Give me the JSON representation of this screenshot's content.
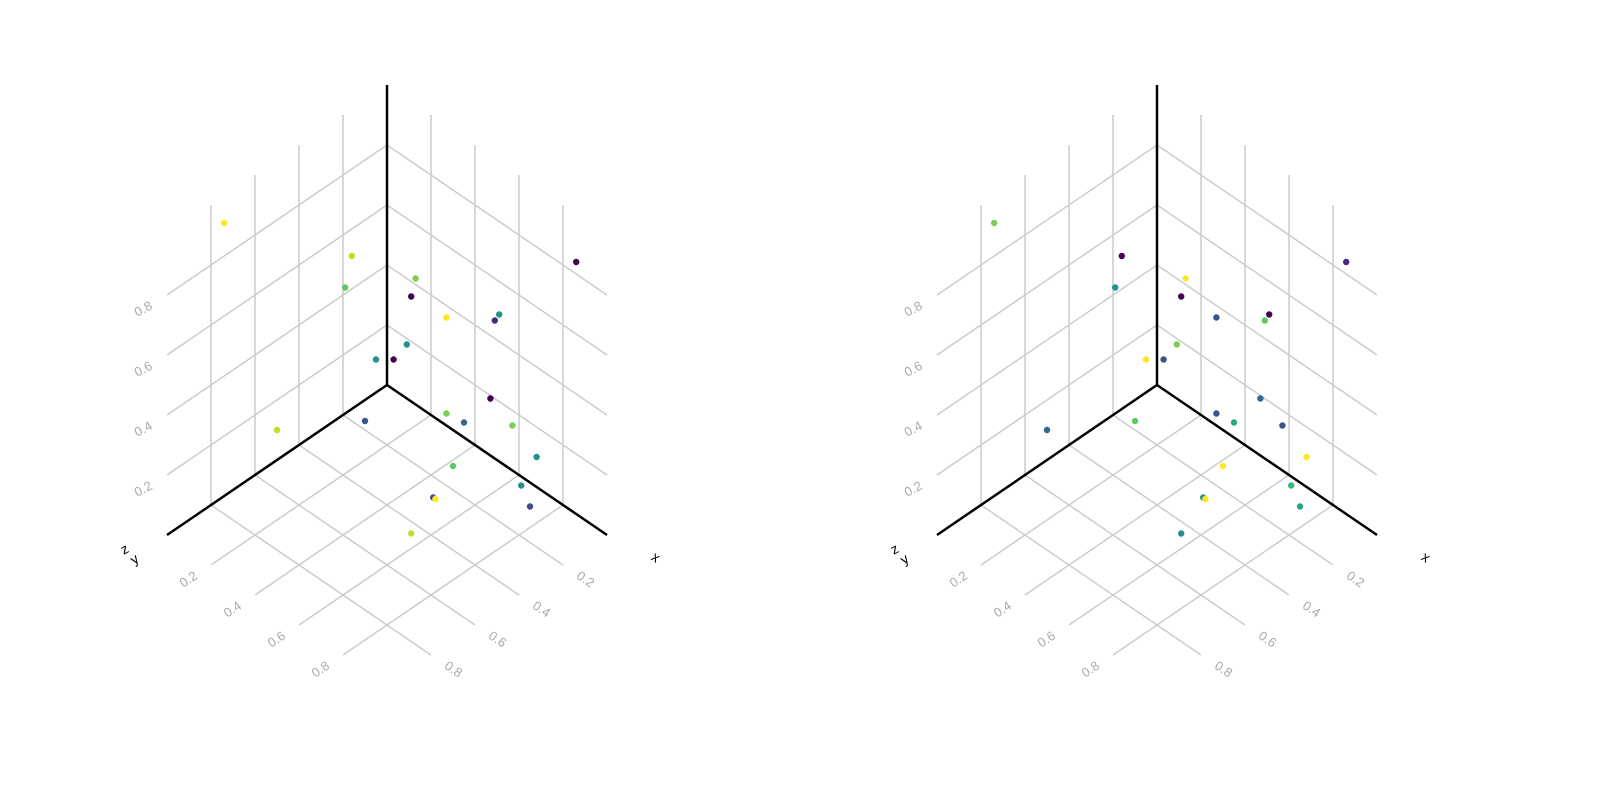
{
  "chart_data": [
    {
      "type": "scatter3d",
      "xlabel": "x",
      "ylabel": "y",
      "zlabel": "z",
      "xlim": [
        0,
        1
      ],
      "ylim": [
        0,
        1
      ],
      "zlim": [
        0,
        1
      ],
      "xticks": [
        0.2,
        0.4,
        0.6,
        0.8
      ],
      "yticks": [
        0.2,
        0.4,
        0.6,
        0.8
      ],
      "zticks": [
        0.2,
        0.4,
        0.6,
        0.8
      ],
      "x": [
        0.78,
        0.4,
        0.37,
        0.08,
        0.35,
        0.09,
        0.06,
        0.34,
        0.06,
        0.24,
        0.5,
        0.02,
        0.65,
        0.32,
        0.06,
        0.35,
        0.11,
        0.05,
        0.05,
        0.47,
        0.57,
        0.32,
        0.08,
        0.33,
        0.54
      ],
      "y": [
        0.04,
        0.24,
        0.18,
        0.21,
        0.46,
        0.36,
        0.57,
        0.83,
        0.92,
        0.19,
        0.53,
        0.11,
        0.15,
        0.22,
        0.33,
        0.7,
        0.58,
        0.62,
        0.73,
        0.77,
        0.78,
        0.54,
        0.69,
        0.98,
        0.65
      ],
      "z": [
        0.95,
        0.75,
        0.6,
        0.5,
        0.7,
        0.45,
        0.55,
        0.8,
        0.9,
        0.3,
        0.6,
        0.2,
        0.25,
        0.15,
        0.1,
        0.4,
        0.3,
        0.2,
        0.15,
        0.35,
        0.3,
        0.05,
        0.05,
        0.25,
        0.1
      ],
      "colors": [
        "#fde725",
        "#bddf26",
        "#5ec962",
        "#7ad151",
        "#440154",
        "#fde725",
        "#21918c",
        "#482878",
        "#440154",
        "#21918c",
        "#440154",
        "#21918c",
        "#bddf26",
        "#3b528b",
        "#7ad151",
        "#31688e",
        "#440154",
        "#7ad151",
        "#21918c",
        "#5ec962",
        "#3b528b",
        "#fde725",
        "#21918c",
        "#3e4a89",
        "#bddf26"
      ]
    },
    {
      "type": "scatter3d",
      "xlabel": "x",
      "ylabel": "y",
      "zlabel": "z",
      "xlim": [
        0,
        1
      ],
      "ylim": [
        0,
        1
      ],
      "zlim": [
        0,
        1
      ],
      "xticks": [
        0.2,
        0.4,
        0.6,
        0.8
      ],
      "yticks": [
        0.2,
        0.4,
        0.6,
        0.8
      ],
      "zticks": [
        0.2,
        0.4,
        0.6,
        0.8
      ],
      "x": [
        0.78,
        0.4,
        0.37,
        0.08,
        0.35,
        0.09,
        0.06,
        0.34,
        0.06,
        0.24,
        0.5,
        0.02,
        0.65,
        0.32,
        0.06,
        0.35,
        0.11,
        0.05,
        0.05,
        0.47,
        0.57,
        0.32,
        0.08,
        0.33,
        0.54
      ],
      "y": [
        0.04,
        0.24,
        0.18,
        0.21,
        0.46,
        0.36,
        0.57,
        0.83,
        0.92,
        0.19,
        0.53,
        0.11,
        0.15,
        0.22,
        0.33,
        0.7,
        0.58,
        0.62,
        0.73,
        0.77,
        0.78,
        0.54,
        0.69,
        0.98,
        0.65
      ],
      "z": [
        0.95,
        0.75,
        0.6,
        0.5,
        0.7,
        0.45,
        0.55,
        0.8,
        0.9,
        0.3,
        0.6,
        0.2,
        0.25,
        0.15,
        0.1,
        0.4,
        0.3,
        0.2,
        0.15,
        0.35,
        0.3,
        0.05,
        0.05,
        0.25,
        0.1
      ],
      "colors": [
        "#7ad151",
        "#440154",
        "#21918c",
        "#fde725",
        "#440154",
        "#3b528b",
        "#440154",
        "#5ec962",
        "#482878",
        "#fde725",
        "#3b528b",
        "#7ad151",
        "#31688e",
        "#5ec962",
        "#3b528b",
        "#22a884",
        "#31688e",
        "#3b528b",
        "#fde725",
        "#fde725",
        "#21918c",
        "#fde725",
        "#35b779",
        "#22a884",
        "#21918c"
      ]
    }
  ]
}
